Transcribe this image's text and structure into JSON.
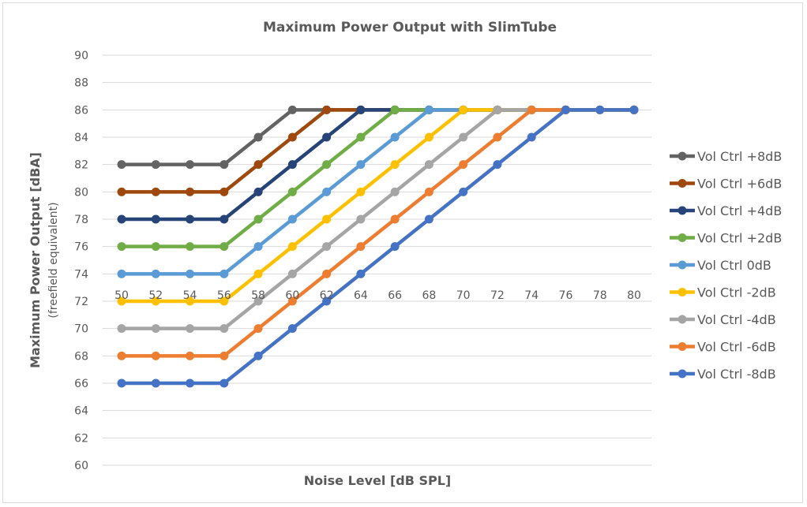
{
  "chart_data": {
    "type": "line",
    "title": "Maximum Power Output with SlimTube",
    "xlabel": "Noise Level [dB SPL]",
    "ylabel": "Maximum Power Output [dBA]",
    "ylabel_sub": "(freefield equivalent)",
    "x": [
      50,
      52,
      54,
      56,
      58,
      60,
      62,
      64,
      66,
      68,
      70,
      72,
      74,
      76,
      78,
      80
    ],
    "ylim": [
      60,
      90
    ],
    "yticks": [
      60,
      62,
      64,
      66,
      68,
      70,
      72,
      74,
      76,
      78,
      80,
      82,
      84,
      86,
      88,
      90
    ],
    "grid": true,
    "legend": "right",
    "series": [
      {
        "name": "Vol Ctrl +8dB",
        "color": "#636363",
        "values": [
          82,
          82,
          82,
          82,
          84,
          86,
          86,
          86,
          86,
          86,
          86,
          86,
          86,
          86,
          86,
          86
        ]
      },
      {
        "name": "Vol Ctrl +6dB",
        "color": "#9e480e",
        "values": [
          80,
          80,
          80,
          80,
          82,
          84,
          86,
          86,
          86,
          86,
          86,
          86,
          86,
          86,
          86,
          86
        ]
      },
      {
        "name": "Vol Ctrl +4dB",
        "color": "#264478",
        "values": [
          78,
          78,
          78,
          78,
          80,
          82,
          84,
          86,
          86,
          86,
          86,
          86,
          86,
          86,
          86,
          86
        ]
      },
      {
        "name": "Vol Ctrl +2dB",
        "color": "#70ad47",
        "values": [
          76,
          76,
          76,
          76,
          78,
          80,
          82,
          84,
          86,
          86,
          86,
          86,
          86,
          86,
          86,
          86
        ]
      },
      {
        "name": "Vol Ctrl 0dB",
        "color": "#5b9bd5",
        "values": [
          74,
          74,
          74,
          74,
          76,
          78,
          80,
          82,
          84,
          86,
          86,
          86,
          86,
          86,
          86,
          86
        ]
      },
      {
        "name": "Vol Ctrl -2dB",
        "color": "#ffc000",
        "values": [
          72,
          72,
          72,
          72,
          74,
          76,
          78,
          80,
          82,
          84,
          86,
          86,
          86,
          86,
          86,
          86
        ]
      },
      {
        "name": "Vol Ctrl -4dB",
        "color": "#a5a5a5",
        "values": [
          70,
          70,
          70,
          70,
          72,
          74,
          76,
          78,
          80,
          82,
          84,
          86,
          86,
          86,
          86,
          86
        ]
      },
      {
        "name": "Vol Ctrl -6dB",
        "color": "#ed7d31",
        "values": [
          68,
          68,
          68,
          68,
          70,
          72,
          74,
          76,
          78,
          80,
          82,
          84,
          86,
          86,
          86,
          86
        ]
      },
      {
        "name": "Vol Ctrl -8dB",
        "color": "#4472c4",
        "values": [
          66,
          66,
          66,
          66,
          68,
          70,
          72,
          74,
          76,
          78,
          80,
          82,
          84,
          86,
          86,
          86
        ]
      }
    ]
  }
}
